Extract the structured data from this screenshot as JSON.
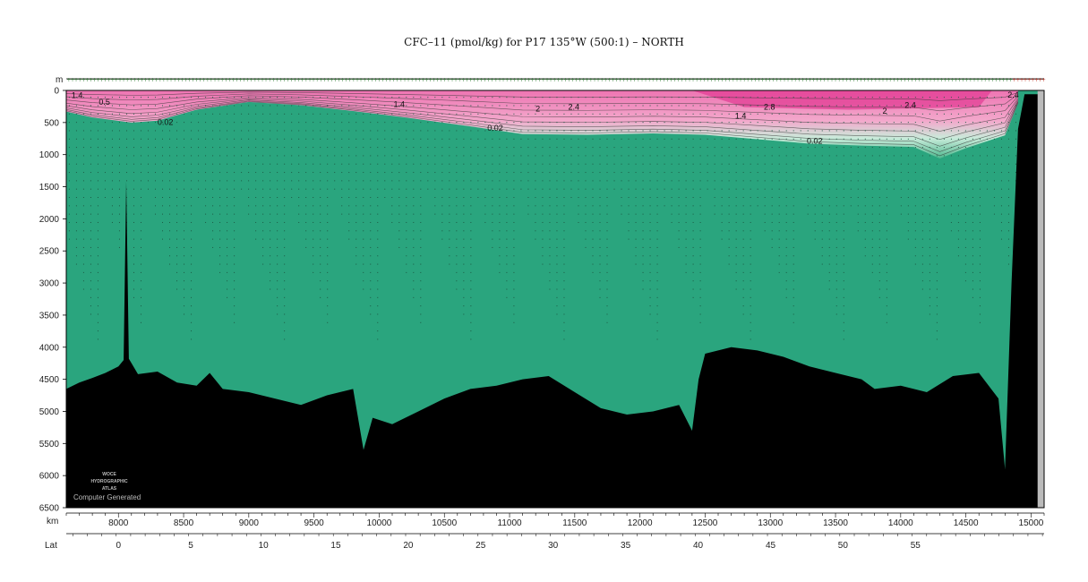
{
  "chart_data": {
    "type": "heatmap",
    "title": "CFC–11 (pmol/kg) for P17 135°W (500:1) – NORTH",
    "ylabel": "m",
    "xlabel": "km",
    "x2label": "Lat",
    "xlim": [
      7600,
      15100
    ],
    "ylim": [
      0,
      6500
    ],
    "yticks": [
      0,
      500,
      1000,
      1500,
      2000,
      2500,
      3000,
      3500,
      4000,
      4500,
      5000,
      5500,
      6000,
      6500
    ],
    "xticks": [
      8000,
      8500,
      9000,
      9500,
      10000,
      10500,
      11000,
      11500,
      12000,
      12500,
      13000,
      13500,
      14000,
      14500,
      15000
    ],
    "lat_ticks": [
      {
        "km": 8000,
        "lat": "0"
      },
      {
        "km": 8555,
        "lat": "5"
      },
      {
        "km": 9112,
        "lat": "10"
      },
      {
        "km": 9667,
        "lat": "15"
      },
      {
        "km": 10223,
        "lat": "20"
      },
      {
        "km": 10778,
        "lat": "25"
      },
      {
        "km": 11334,
        "lat": "30"
      },
      {
        "km": 11890,
        "lat": "35"
      },
      {
        "km": 12446,
        "lat": "40"
      },
      {
        "km": 13002,
        "lat": "45"
      },
      {
        "km": 13557,
        "lat": "50"
      },
      {
        "km": 14113,
        "lat": "55"
      }
    ],
    "contour_labels": [
      {
        "text": "1.4",
        "km": 7640,
        "depth": 120
      },
      {
        "text": "0.5",
        "km": 7850,
        "depth": 220
      },
      {
        "text": "0.02",
        "km": 8300,
        "depth": 540
      },
      {
        "text": "1.4",
        "km": 10110,
        "depth": 260
      },
      {
        "text": "2",
        "km": 11200,
        "depth": 330
      },
      {
        "text": "2.4",
        "km": 11450,
        "depth": 300
      },
      {
        "text": "0.02",
        "km": 10830,
        "depth": 630
      },
      {
        "text": "2.8",
        "km": 12950,
        "depth": 300
      },
      {
        "text": "1.4",
        "km": 12730,
        "depth": 440
      },
      {
        "text": "0.02",
        "km": 13280,
        "depth": 830
      },
      {
        "text": "2",
        "km": 13860,
        "depth": 360
      },
      {
        "text": "2.4",
        "km": 14030,
        "depth": 270
      },
      {
        "text": "2.4",
        "km": 14820,
        "depth": 110
      }
    ],
    "color_scale": [
      {
        "value": 0.0,
        "color": "#2aa57e"
      },
      {
        "value": 0.02,
        "color": "#4fb88f"
      },
      {
        "value": 0.3,
        "color": "#8fd2b3"
      },
      {
        "value": 0.8,
        "color": "#c9ebda"
      },
      {
        "value": 1.2,
        "color": "#f2dbe6"
      },
      {
        "value": 1.8,
        "color": "#f3a9cc"
      },
      {
        "value": 2.4,
        "color": "#ee74b2"
      },
      {
        "value": 2.8,
        "color": "#e33f95"
      }
    ],
    "thermocline": [
      {
        "km": 7600,
        "depth": 330
      },
      {
        "km": 7800,
        "depth": 420
      },
      {
        "km": 8100,
        "depth": 500
      },
      {
        "km": 8300,
        "depth": 470
      },
      {
        "km": 8600,
        "depth": 300
      },
      {
        "km": 9000,
        "depth": 180
      },
      {
        "km": 9400,
        "depth": 230
      },
      {
        "km": 9800,
        "depth": 320
      },
      {
        "km": 10200,
        "depth": 420
      },
      {
        "km": 10700,
        "depth": 560
      },
      {
        "km": 11100,
        "depth": 680
      },
      {
        "km": 11600,
        "depth": 690
      },
      {
        "km": 12100,
        "depth": 670
      },
      {
        "km": 12500,
        "depth": 690
      },
      {
        "km": 12900,
        "depth": 760
      },
      {
        "km": 13300,
        "depth": 830
      },
      {
        "km": 13700,
        "depth": 860
      },
      {
        "km": 14100,
        "depth": 880
      },
      {
        "km": 14300,
        "depth": 1060
      },
      {
        "km": 14500,
        "depth": 900
      },
      {
        "km": 14800,
        "depth": 700
      },
      {
        "km": 14900,
        "depth": 200
      }
    ],
    "bathymetry": [
      {
        "km": 7600,
        "depth": 4650
      },
      {
        "km": 7700,
        "depth": 4550
      },
      {
        "km": 7800,
        "depth": 4480
      },
      {
        "km": 7900,
        "depth": 4400
      },
      {
        "km": 8000,
        "depth": 4300
      },
      {
        "km": 8040,
        "depth": 4200
      },
      {
        "km": 8060,
        "depth": 1420
      },
      {
        "km": 8080,
        "depth": 4180
      },
      {
        "km": 8150,
        "depth": 4420
      },
      {
        "km": 8300,
        "depth": 4380
      },
      {
        "km": 8450,
        "depth": 4550
      },
      {
        "km": 8600,
        "depth": 4600
      },
      {
        "km": 8700,
        "depth": 4400
      },
      {
        "km": 8800,
        "depth": 4650
      },
      {
        "km": 9000,
        "depth": 4700
      },
      {
        "km": 9200,
        "depth": 4800
      },
      {
        "km": 9400,
        "depth": 4900
      },
      {
        "km": 9600,
        "depth": 4750
      },
      {
        "km": 9800,
        "depth": 4650
      },
      {
        "km": 9880,
        "depth": 5600
      },
      {
        "km": 9950,
        "depth": 5100
      },
      {
        "km": 10100,
        "depth": 5200
      },
      {
        "km": 10300,
        "depth": 5000
      },
      {
        "km": 10500,
        "depth": 4800
      },
      {
        "km": 10700,
        "depth": 4650
      },
      {
        "km": 10900,
        "depth": 4600
      },
      {
        "km": 11100,
        "depth": 4500
      },
      {
        "km": 11300,
        "depth": 4450
      },
      {
        "km": 11500,
        "depth": 4700
      },
      {
        "km": 11700,
        "depth": 4950
      },
      {
        "km": 11900,
        "depth": 5050
      },
      {
        "km": 12100,
        "depth": 5000
      },
      {
        "km": 12300,
        "depth": 4900
      },
      {
        "km": 12400,
        "depth": 5300
      },
      {
        "km": 12450,
        "depth": 4500
      },
      {
        "km": 12500,
        "depth": 4100
      },
      {
        "km": 12700,
        "depth": 4000
      },
      {
        "km": 12900,
        "depth": 4050
      },
      {
        "km": 13100,
        "depth": 4150
      },
      {
        "km": 13300,
        "depth": 4300
      },
      {
        "km": 13500,
        "depth": 4400
      },
      {
        "km": 13700,
        "depth": 4500
      },
      {
        "km": 13800,
        "depth": 4650
      },
      {
        "km": 14000,
        "depth": 4600
      },
      {
        "km": 14200,
        "depth": 4700
      },
      {
        "km": 14400,
        "depth": 4450
      },
      {
        "km": 14600,
        "depth": 4400
      },
      {
        "km": 14750,
        "depth": 4800
      },
      {
        "km": 14800,
        "depth": 5900
      },
      {
        "km": 14850,
        "depth": 3000
      },
      {
        "km": 14900,
        "depth": 600
      },
      {
        "km": 14950,
        "depth": 60
      },
      {
        "km": 15050,
        "depth": 60
      },
      {
        "km": 15100,
        "depth": 0
      }
    ]
  },
  "watermark": {
    "line1": "WOCE",
    "line2": "HYDROGRAPHIC",
    "line3": "ATLAS",
    "generated": "Computer Generated"
  }
}
